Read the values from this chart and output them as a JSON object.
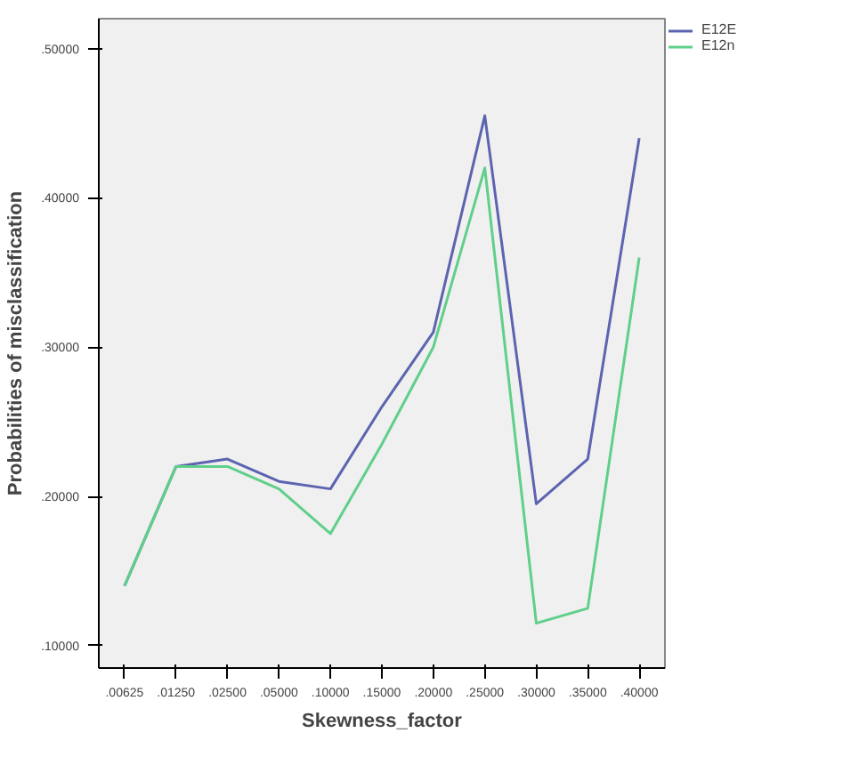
{
  "chart_data": {
    "type": "line",
    "xlabel": "Skewness_factor",
    "ylabel": "Probabilities of misclassification",
    "categories": [
      ".00625",
      ".01250",
      ".02500",
      ".05000",
      ".10000",
      ".15000",
      ".20000",
      ".25000",
      ".30000",
      ".35000",
      ".40000"
    ],
    "series": [
      {
        "name": "E12E",
        "color": "#5c64b0",
        "values": [
          0.14,
          0.22,
          0.225,
          0.21,
          0.205,
          0.26,
          0.31,
          0.455,
          0.195,
          0.225,
          0.44
        ]
      },
      {
        "name": "E12n",
        "color": "#5fcf8a",
        "values": [
          0.14,
          0.22,
          0.22,
          0.205,
          0.175,
          0.235,
          0.3,
          0.42,
          0.115,
          0.125,
          0.36
        ]
      }
    ],
    "ylim": [
      0.085,
      0.52
    ],
    "yticks": [
      {
        "value": 0.1,
        "label": ".10000"
      },
      {
        "value": 0.2,
        "label": ".20000"
      },
      {
        "value": 0.3,
        "label": ".30000"
      },
      {
        "value": 0.4,
        "label": ".40000"
      },
      {
        "value": 0.5,
        "label": ".50000"
      }
    ],
    "legend": "top right",
    "grid": false,
    "marker": "none",
    "line_style": "solid"
  }
}
